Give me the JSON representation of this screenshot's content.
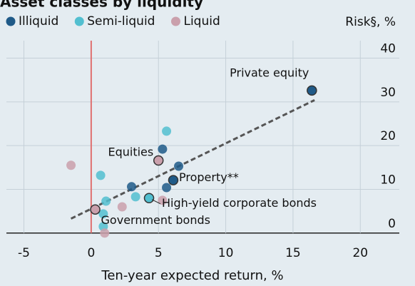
{
  "chart_data": {
    "type": "scatter",
    "title": "Asset classes by liquidity",
    "x_label": "Ten-year expected return, %",
    "y_label": "Risk§, %",
    "xlim": [
      -6.3,
      22.9
    ],
    "ylim": [
      -1.5,
      44
    ],
    "xticks": [
      -5,
      0,
      5,
      10,
      15,
      20
    ],
    "yticks": [
      0,
      10,
      20,
      30,
      40
    ],
    "grid": true,
    "zero_line_color": "#e07070",
    "series": [
      {
        "name": "Illiquid",
        "color": "#1f5a88",
        "x": [
          16.4,
          6.1,
          5.3,
          6.5,
          3.0,
          5.6
        ],
        "y": [
          32.6,
          12.1,
          19.2,
          15.3,
          10.6,
          10.4
        ]
      },
      {
        "name": "Semi-liquid",
        "color": "#52bfd0",
        "x": [
          5.6,
          0.7,
          4.3,
          3.3,
          1.1,
          0.9,
          0.9
        ],
        "y": [
          23.3,
          13.2,
          8.0,
          8.3,
          7.3,
          4.4,
          1.5
        ]
      },
      {
        "name": "Liquid",
        "color": "#caa0ac",
        "x": [
          -1.5,
          5.0,
          0.3,
          2.3,
          5.3,
          1.0
        ],
        "y": [
          15.5,
          16.6,
          5.4,
          6.0,
          7.5,
          0.0
        ]
      }
    ],
    "trendline": {
      "x": [
        -1.5,
        16.6
      ],
      "y": [
        3.3,
        30.4
      ]
    },
    "annotations": [
      {
        "text": "Private equity",
        "series": 0,
        "point": 0
      },
      {
        "text": "Property**",
        "series": 0,
        "point": 1
      },
      {
        "text": "Equities",
        "series": 2,
        "point": 1
      },
      {
        "text": "High-yield corporate bonds",
        "series": 1,
        "point": 2
      },
      {
        "text": "Government bonds",
        "series": 2,
        "point": 2
      }
    ]
  }
}
